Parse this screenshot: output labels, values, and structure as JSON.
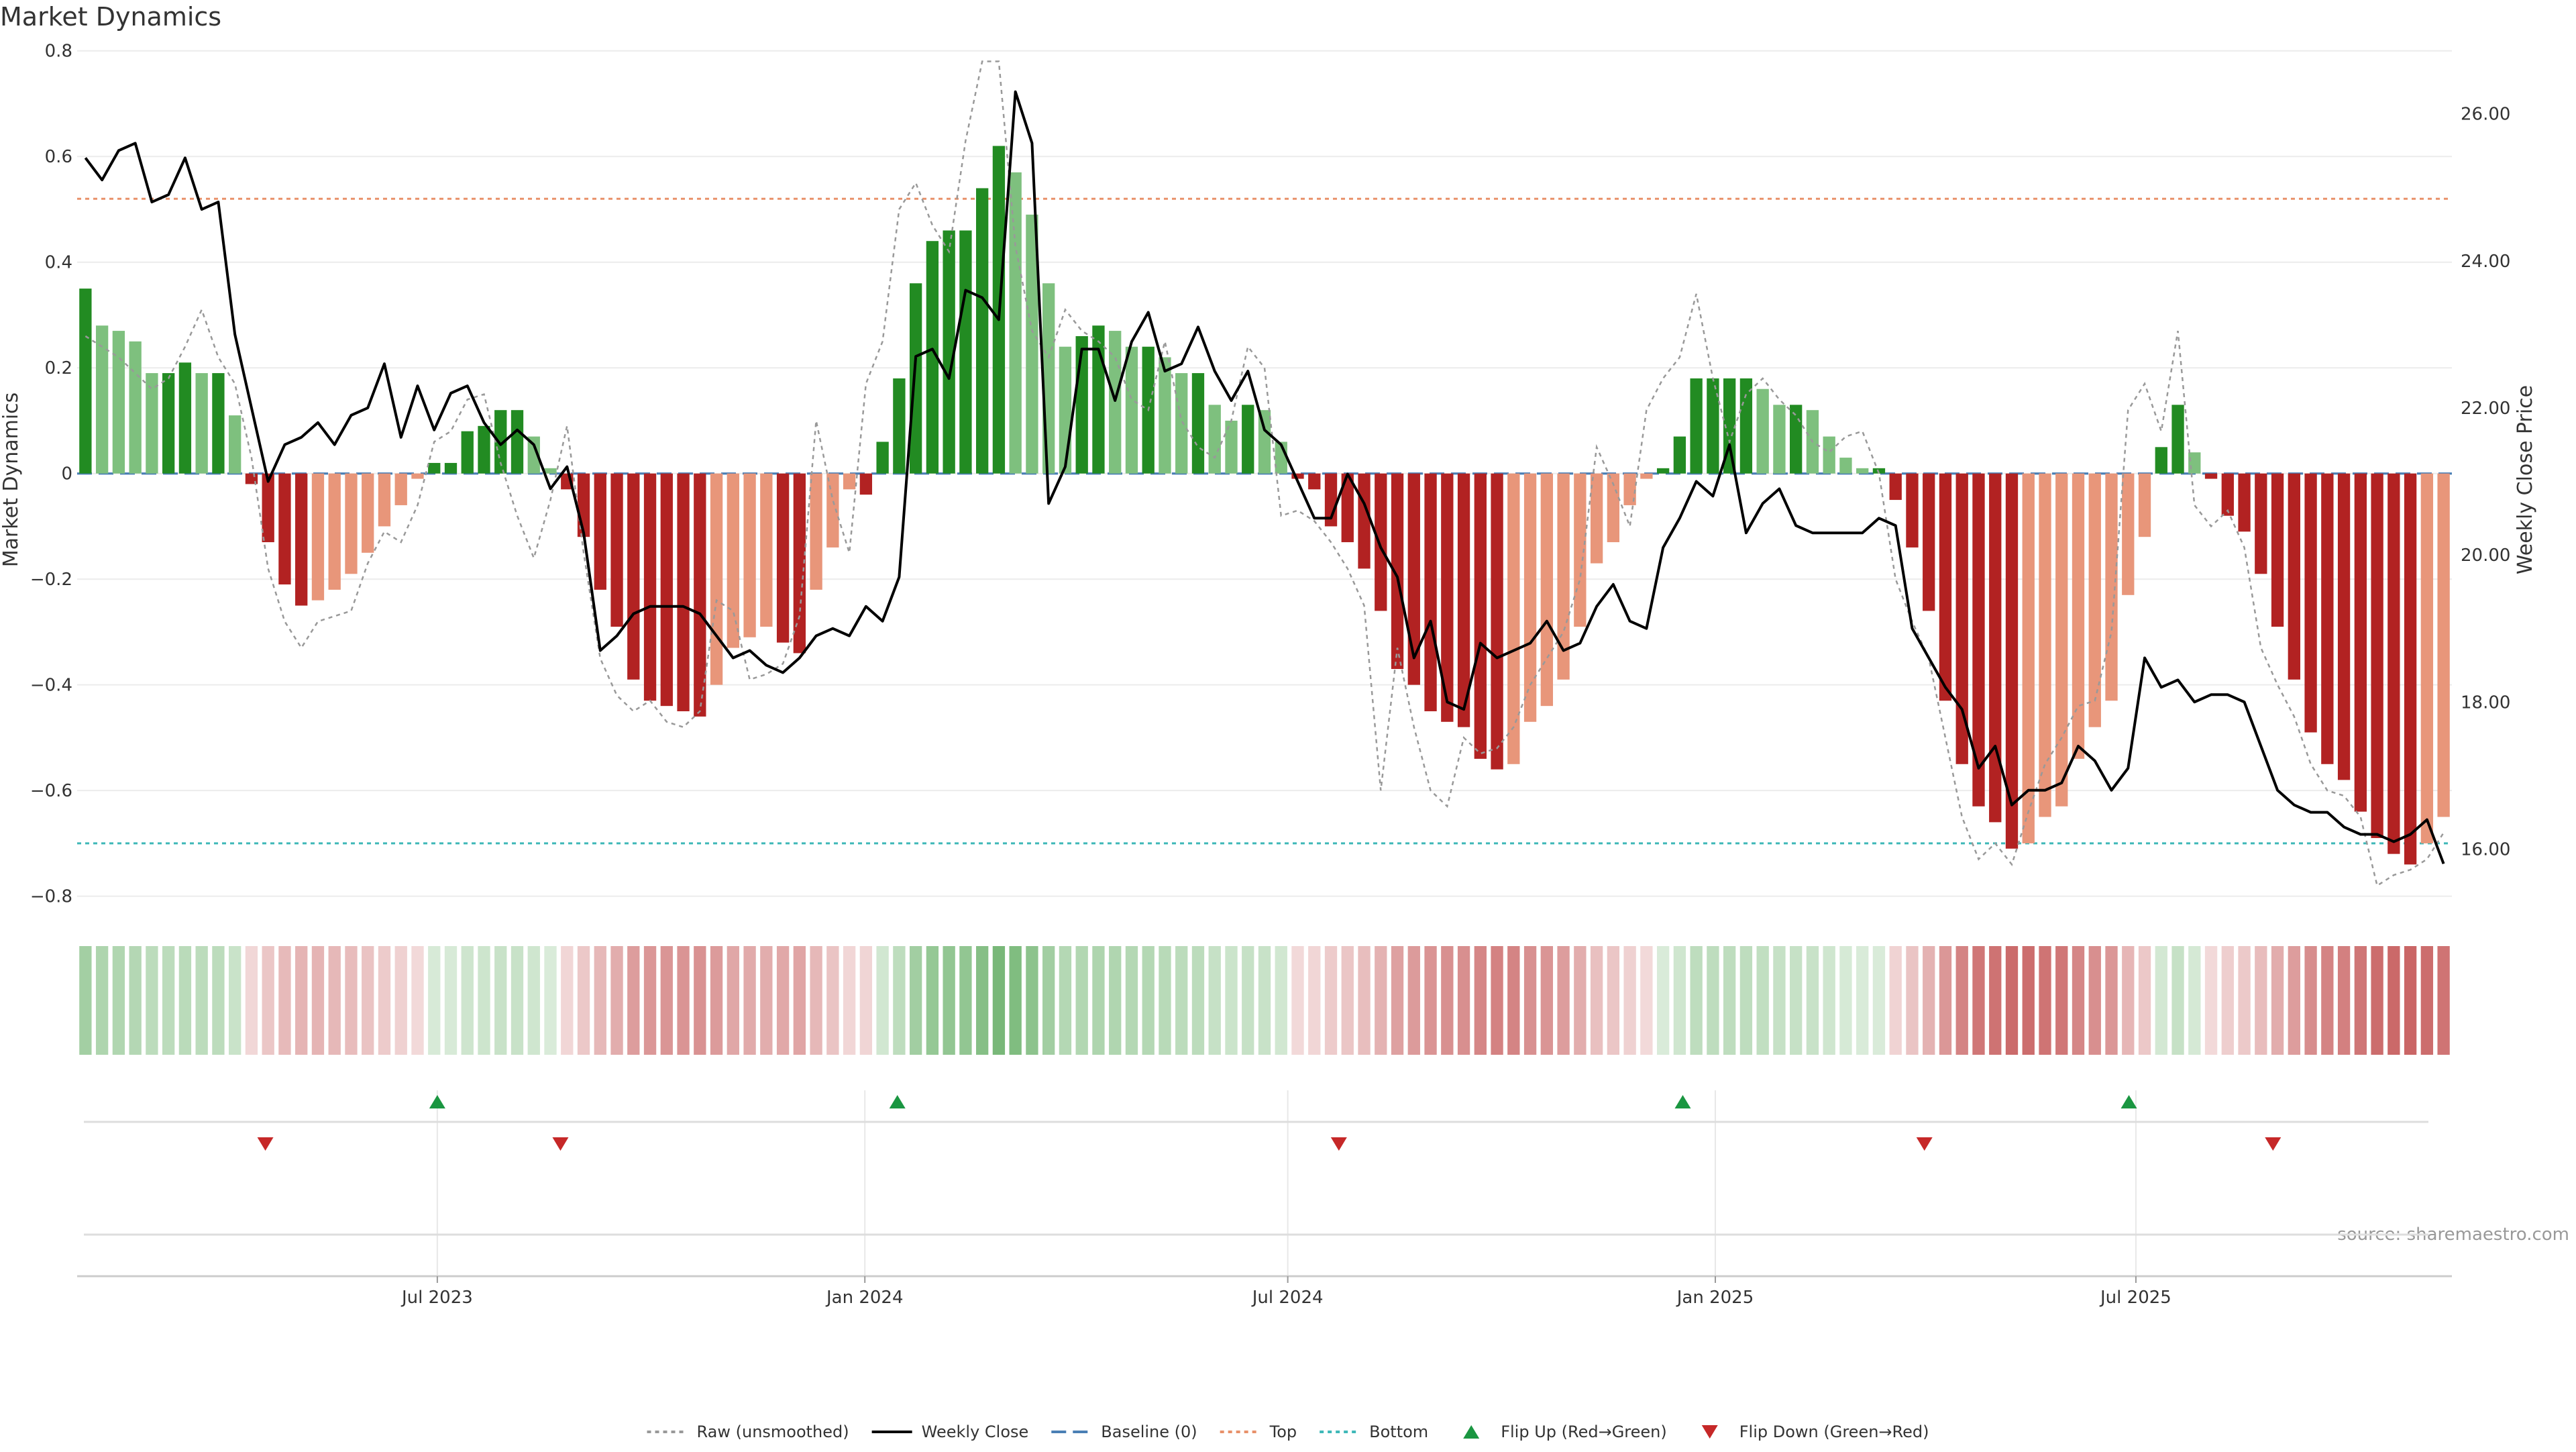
{
  "chart_data": {
    "type": "bar",
    "title": "Market Dynamics",
    "ylabel": "Market Dynamics",
    "y2label": "Weekly Close Price",
    "ylim": [
      -0.85,
      0.82
    ],
    "y_ticks": [
      0.8,
      0.6,
      0.4,
      0.2,
      0,
      -0.2,
      -0.4,
      -0.6,
      -0.8
    ],
    "y_tick_labels": [
      "0.8",
      "0.6",
      "0.4",
      "0.2",
      "0",
      "−0.2",
      "−0.4",
      "−0.6",
      "−0.8"
    ],
    "y2lim": [
      15.0,
      27.0
    ],
    "y2_ticks": [
      16,
      18,
      20,
      22,
      24,
      26
    ],
    "y2_tick_labels": [
      "16.00",
      "18.00",
      "20.00",
      "22.00",
      "24.00",
      "26.00"
    ],
    "x_start": "2023-01-27",
    "x_end": "2025-11-14",
    "x_ticks": [
      "2023-07-01",
      "2024-01-01",
      "2024-07-01",
      "2025-01-01",
      "2025-07-01"
    ],
    "x_tick_labels": [
      "Jul 2023",
      "Jan 2024",
      "Jul 2024",
      "Jan 2025",
      "Jul 2025"
    ],
    "bar_values": [
      0.35,
      0.28,
      0.27,
      0.25,
      0.19,
      0.19,
      0.21,
      0.19,
      0.19,
      0.11,
      -0.02,
      -0.13,
      -0.21,
      -0.25,
      -0.24,
      -0.22,
      -0.19,
      -0.15,
      -0.1,
      -0.06,
      -0.01,
      0.02,
      0.02,
      0.08,
      0.09,
      0.12,
      0.12,
      0.07,
      0.01,
      -0.03,
      -0.12,
      -0.22,
      -0.29,
      -0.39,
      -0.43,
      -0.44,
      -0.45,
      -0.46,
      -0.4,
      -0.33,
      -0.31,
      -0.29,
      -0.32,
      -0.34,
      -0.22,
      -0.14,
      -0.03,
      -0.04,
      0.06,
      0.18,
      0.36,
      0.44,
      0.46,
      0.46,
      0.54,
      0.62,
      0.57,
      0.49,
      0.36,
      0.24,
      0.26,
      0.28,
      0.27,
      0.24,
      0.24,
      0.22,
      0.19,
      0.19,
      0.13,
      0.1,
      0.13,
      0.12,
      0.06,
      -0.01,
      -0.03,
      -0.1,
      -0.13,
      -0.18,
      -0.26,
      -0.37,
      -0.4,
      -0.45,
      -0.47,
      -0.48,
      -0.54,
      -0.56,
      -0.55,
      -0.47,
      -0.44,
      -0.39,
      -0.29,
      -0.17,
      -0.13,
      -0.06,
      -0.01,
      0.01,
      0.07,
      0.18,
      0.18,
      0.18,
      0.18,
      0.16,
      0.13,
      0.13,
      0.12,
      0.07,
      0.03,
      0.01,
      0.01,
      -0.05,
      -0.14,
      -0.26,
      -0.43,
      -0.55,
      -0.63,
      -0.66,
      -0.71,
      -0.7,
      -0.65,
      -0.63,
      -0.54,
      -0.48,
      -0.43,
      -0.23,
      -0.12,
      0.05,
      0.13,
      0.04,
      -0.01,
      -0.08,
      -0.11,
      -0.19,
      -0.29,
      -0.39,
      -0.49,
      -0.55,
      -0.58,
      -0.64,
      -0.69,
      -0.72,
      -0.74,
      -0.7,
      -0.65
    ],
    "raw_values": [
      0.26,
      0.24,
      0.22,
      0.19,
      0.16,
      0.18,
      0.24,
      0.31,
      0.22,
      0.17,
      0.03,
      -0.18,
      -0.28,
      -0.33,
      -0.28,
      -0.27,
      -0.26,
      -0.17,
      -0.11,
      -0.13,
      -0.06,
      0.06,
      0.08,
      0.14,
      0.15,
      0.02,
      -0.08,
      -0.16,
      -0.05,
      0.09,
      -0.15,
      -0.35,
      -0.42,
      -0.45,
      -0.43,
      -0.47,
      -0.48,
      -0.45,
      -0.24,
      -0.26,
      -0.39,
      -0.38,
      -0.36,
      -0.27,
      0.1,
      -0.05,
      -0.15,
      0.17,
      0.25,
      0.5,
      0.55,
      0.47,
      0.42,
      0.63,
      0.78,
      0.78,
      0.43,
      0.27,
      0.22,
      0.31,
      0.27,
      0.25,
      0.22,
      0.14,
      0.12,
      0.25,
      0.1,
      0.05,
      0.03,
      0.1,
      0.24,
      0.2,
      -0.08,
      -0.07,
      -0.09,
      -0.13,
      -0.18,
      -0.25,
      -0.6,
      -0.33,
      -0.48,
      -0.6,
      -0.63,
      -0.5,
      -0.53,
      -0.52,
      -0.48,
      -0.4,
      -0.35,
      -0.3,
      -0.2,
      0.05,
      -0.02,
      -0.1,
      0.12,
      0.18,
      0.22,
      0.34,
      0.18,
      0.06,
      0.15,
      0.18,
      0.14,
      0.11,
      0.06,
      0.04,
      0.07,
      0.08,
      0.0,
      -0.2,
      -0.28,
      -0.35,
      -0.5,
      -0.65,
      -0.73,
      -0.7,
      -0.74,
      -0.64,
      -0.55,
      -0.5,
      -0.44,
      -0.43,
      -0.3,
      0.12,
      0.17,
      0.08,
      0.27,
      -0.06,
      -0.1,
      -0.07,
      -0.14,
      -0.33,
      -0.4,
      -0.46,
      -0.55,
      -0.6,
      -0.61,
      -0.65,
      -0.78,
      -0.76,
      -0.75,
      -0.73,
      -0.68
    ],
    "close_values": [
      25.4,
      25.1,
      25.5,
      25.6,
      24.8,
      24.9,
      25.4,
      24.7,
      24.8,
      23.0,
      22.0,
      21.0,
      21.5,
      21.6,
      21.8,
      21.5,
      21.9,
      22.0,
      22.6,
      21.6,
      22.3,
      21.7,
      22.2,
      22.3,
      21.8,
      21.5,
      21.7,
      21.5,
      20.9,
      21.2,
      20.3,
      18.7,
      18.9,
      19.2,
      19.3,
      19.3,
      19.3,
      19.2,
      18.9,
      18.6,
      18.7,
      18.5,
      18.4,
      18.6,
      18.9,
      19.0,
      18.9,
      19.3,
      19.1,
      19.7,
      22.7,
      22.8,
      22.4,
      23.6,
      23.5,
      23.2,
      26.3,
      25.6,
      20.7,
      21.2,
      22.8,
      22.8,
      22.1,
      22.9,
      23.3,
      22.5,
      22.6,
      23.1,
      22.5,
      22.1,
      22.5,
      21.7,
      21.5,
      21.0,
      20.5,
      20.5,
      21.1,
      20.7,
      20.1,
      19.7,
      18.6,
      19.1,
      18.0,
      17.9,
      18.8,
      18.6,
      18.7,
      18.8,
      19.1,
      18.7,
      18.8,
      19.3,
      19.6,
      19.1,
      19.0,
      20.1,
      20.5,
      21.0,
      20.8,
      21.5,
      20.3,
      20.7,
      20.9,
      20.4,
      20.3,
      20.3,
      20.3,
      20.3,
      20.5,
      20.4,
      19.0,
      18.6,
      18.2,
      17.9,
      17.1,
      17.4,
      16.6,
      16.8,
      16.8,
      16.9,
      17.4,
      17.2,
      16.8,
      17.1,
      18.6,
      18.2,
      18.3,
      18.0,
      18.1,
      18.1,
      18.0,
      17.4,
      16.8,
      16.6,
      16.5,
      16.5,
      16.3,
      16.2,
      16.2,
      16.1,
      16.2,
      16.4,
      15.8
    ],
    "bands": [
      {
        "name": "Top",
        "value": 0.52,
        "color": "#e8916a"
      },
      {
        "name": "Bottom",
        "value": -0.7,
        "color": "#3fb8b8"
      },
      {
        "name": "Baseline (0)",
        "value": 0,
        "color": "#4a7fb5"
      }
    ],
    "flip_up_dates": [
      "2023-07-01",
      "2024-01-15",
      "2024-12-18",
      "2025-06-28"
    ],
    "flip_down_dates": [
      "2023-04-18",
      "2023-08-23",
      "2024-07-23",
      "2025-04-01",
      "2025-08-29"
    ],
    "colors": {
      "strong_up": "#228b22",
      "weak_up": "#7ec07e",
      "strong_down": "#b22222",
      "weak_down": "#e8967a",
      "close_line": "#000000",
      "raw_line": "#999999",
      "flip_up": "#1a9641",
      "flip_down": "#c62828"
    },
    "legend": [
      {
        "label": "Raw (unsmoothed)",
        "marker": "dotted-line"
      },
      {
        "label": "Weekly Close",
        "marker": "solid-line"
      },
      {
        "label": "Baseline (0)",
        "marker": "dashed-line"
      },
      {
        "label": "Top",
        "marker": "dotted-line"
      },
      {
        "label": "Bottom",
        "marker": "dotted-line"
      },
      {
        "label": "Flip Up (Red→Green)",
        "marker": "triangle-up"
      },
      {
        "label": "Flip Down (Green→Red)",
        "marker": "triangle-down"
      }
    ],
    "grid": true,
    "legend_position": "bottom-center",
    "source": "source: sharemaestro.com"
  }
}
